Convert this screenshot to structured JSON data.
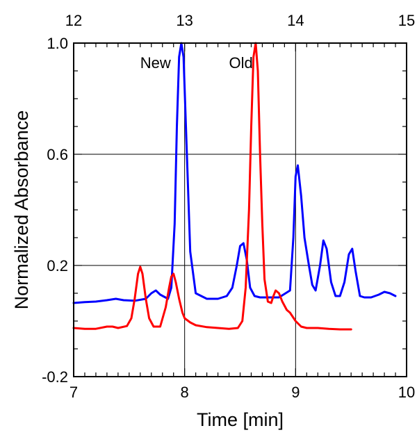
{
  "chart_data": {
    "type": "line",
    "title": "",
    "xlabel": "Time [min]",
    "ylabel": "Normalized Absorbance",
    "xlim": [
      7,
      10
    ],
    "ylim": [
      -0.2,
      1.0
    ],
    "secondary_xlim": [
      12,
      15
    ],
    "x_ticks": [
      "7",
      "8",
      "9",
      "10"
    ],
    "secondary_x_ticks": [
      "12",
      "13",
      "14",
      "15"
    ],
    "y_ticks": [
      "-0.2",
      "0.2",
      "0.6",
      "1.0"
    ],
    "grid": {
      "x_major": [
        8,
        9
      ],
      "y_major": [
        0.2,
        0.6
      ]
    },
    "annotations": [
      {
        "text": "New",
        "x": 7.6,
        "y": 0.93
      },
      {
        "text": "Old",
        "x": 8.4,
        "y": 0.93
      }
    ],
    "series": [
      {
        "color": "#0000ff",
        "axis": "bottom",
        "x": [
          7.0,
          7.1,
          7.2,
          7.3,
          7.38,
          7.45,
          7.55,
          7.65,
          7.7,
          7.74,
          7.78,
          7.85,
          7.88,
          7.91,
          7.93,
          7.95,
          7.97,
          7.99,
          8.02,
          8.05,
          8.1,
          8.2,
          8.3,
          8.38,
          8.43,
          8.47,
          8.5,
          8.53,
          8.56,
          8.59,
          8.63,
          8.68,
          8.75,
          8.85,
          8.95,
          8.98,
          9.0,
          9.02,
          9.05,
          9.08,
          9.12,
          9.15,
          9.18,
          9.22,
          9.25,
          9.28,
          9.32,
          9.36,
          9.4,
          9.44,
          9.48,
          9.51,
          9.54,
          9.58,
          9.62,
          9.68,
          9.75,
          9.8,
          9.85,
          9.9
        ],
        "y": [
          0.065,
          0.068,
          0.07,
          0.075,
          0.08,
          0.075,
          0.073,
          0.08,
          0.1,
          0.11,
          0.095,
          0.08,
          0.12,
          0.35,
          0.7,
          0.95,
          1.0,
          0.95,
          0.6,
          0.25,
          0.1,
          0.08,
          0.08,
          0.09,
          0.12,
          0.2,
          0.27,
          0.28,
          0.22,
          0.12,
          0.09,
          0.085,
          0.085,
          0.085,
          0.11,
          0.3,
          0.52,
          0.56,
          0.45,
          0.3,
          0.2,
          0.13,
          0.11,
          0.2,
          0.29,
          0.26,
          0.14,
          0.09,
          0.09,
          0.14,
          0.24,
          0.26,
          0.18,
          0.09,
          0.085,
          0.085,
          0.095,
          0.105,
          0.1,
          0.09
        ]
      },
      {
        "color": "#ff0000",
        "axis": "bottom",
        "x": [
          7.0,
          7.1,
          7.2,
          7.3,
          7.35,
          7.4,
          7.48,
          7.52,
          7.55,
          7.58,
          7.6,
          7.62,
          7.65,
          7.68,
          7.72,
          7.78,
          7.83,
          7.86,
          7.88,
          7.9,
          7.92,
          7.95,
          7.98,
          8.0,
          8.05,
          8.1,
          8.2,
          8.3,
          8.4,
          8.48,
          8.52,
          8.55,
          8.58,
          8.6,
          8.62,
          8.64,
          8.66,
          8.68,
          8.7,
          8.72,
          8.75,
          8.78,
          8.8,
          8.82,
          8.85,
          8.88,
          8.92,
          8.95,
          9.0,
          9.05,
          9.1,
          9.2,
          9.3,
          9.4,
          9.5
        ],
        "y": [
          -0.025,
          -0.028,
          -0.028,
          -0.02,
          -0.02,
          -0.025,
          -0.018,
          0.01,
          0.08,
          0.17,
          0.195,
          0.17,
          0.08,
          0.01,
          -0.02,
          -0.02,
          0.05,
          0.12,
          0.16,
          0.17,
          0.14,
          0.08,
          0.03,
          0.01,
          -0.005,
          -0.015,
          -0.022,
          -0.025,
          -0.028,
          -0.025,
          0.0,
          0.12,
          0.4,
          0.7,
          0.95,
          1.0,
          0.9,
          0.6,
          0.35,
          0.15,
          0.07,
          0.065,
          0.09,
          0.11,
          0.1,
          0.07,
          0.04,
          0.03,
          0.0,
          -0.02,
          -0.025,
          -0.025,
          -0.028,
          -0.03,
          -0.03
        ]
      }
    ]
  }
}
